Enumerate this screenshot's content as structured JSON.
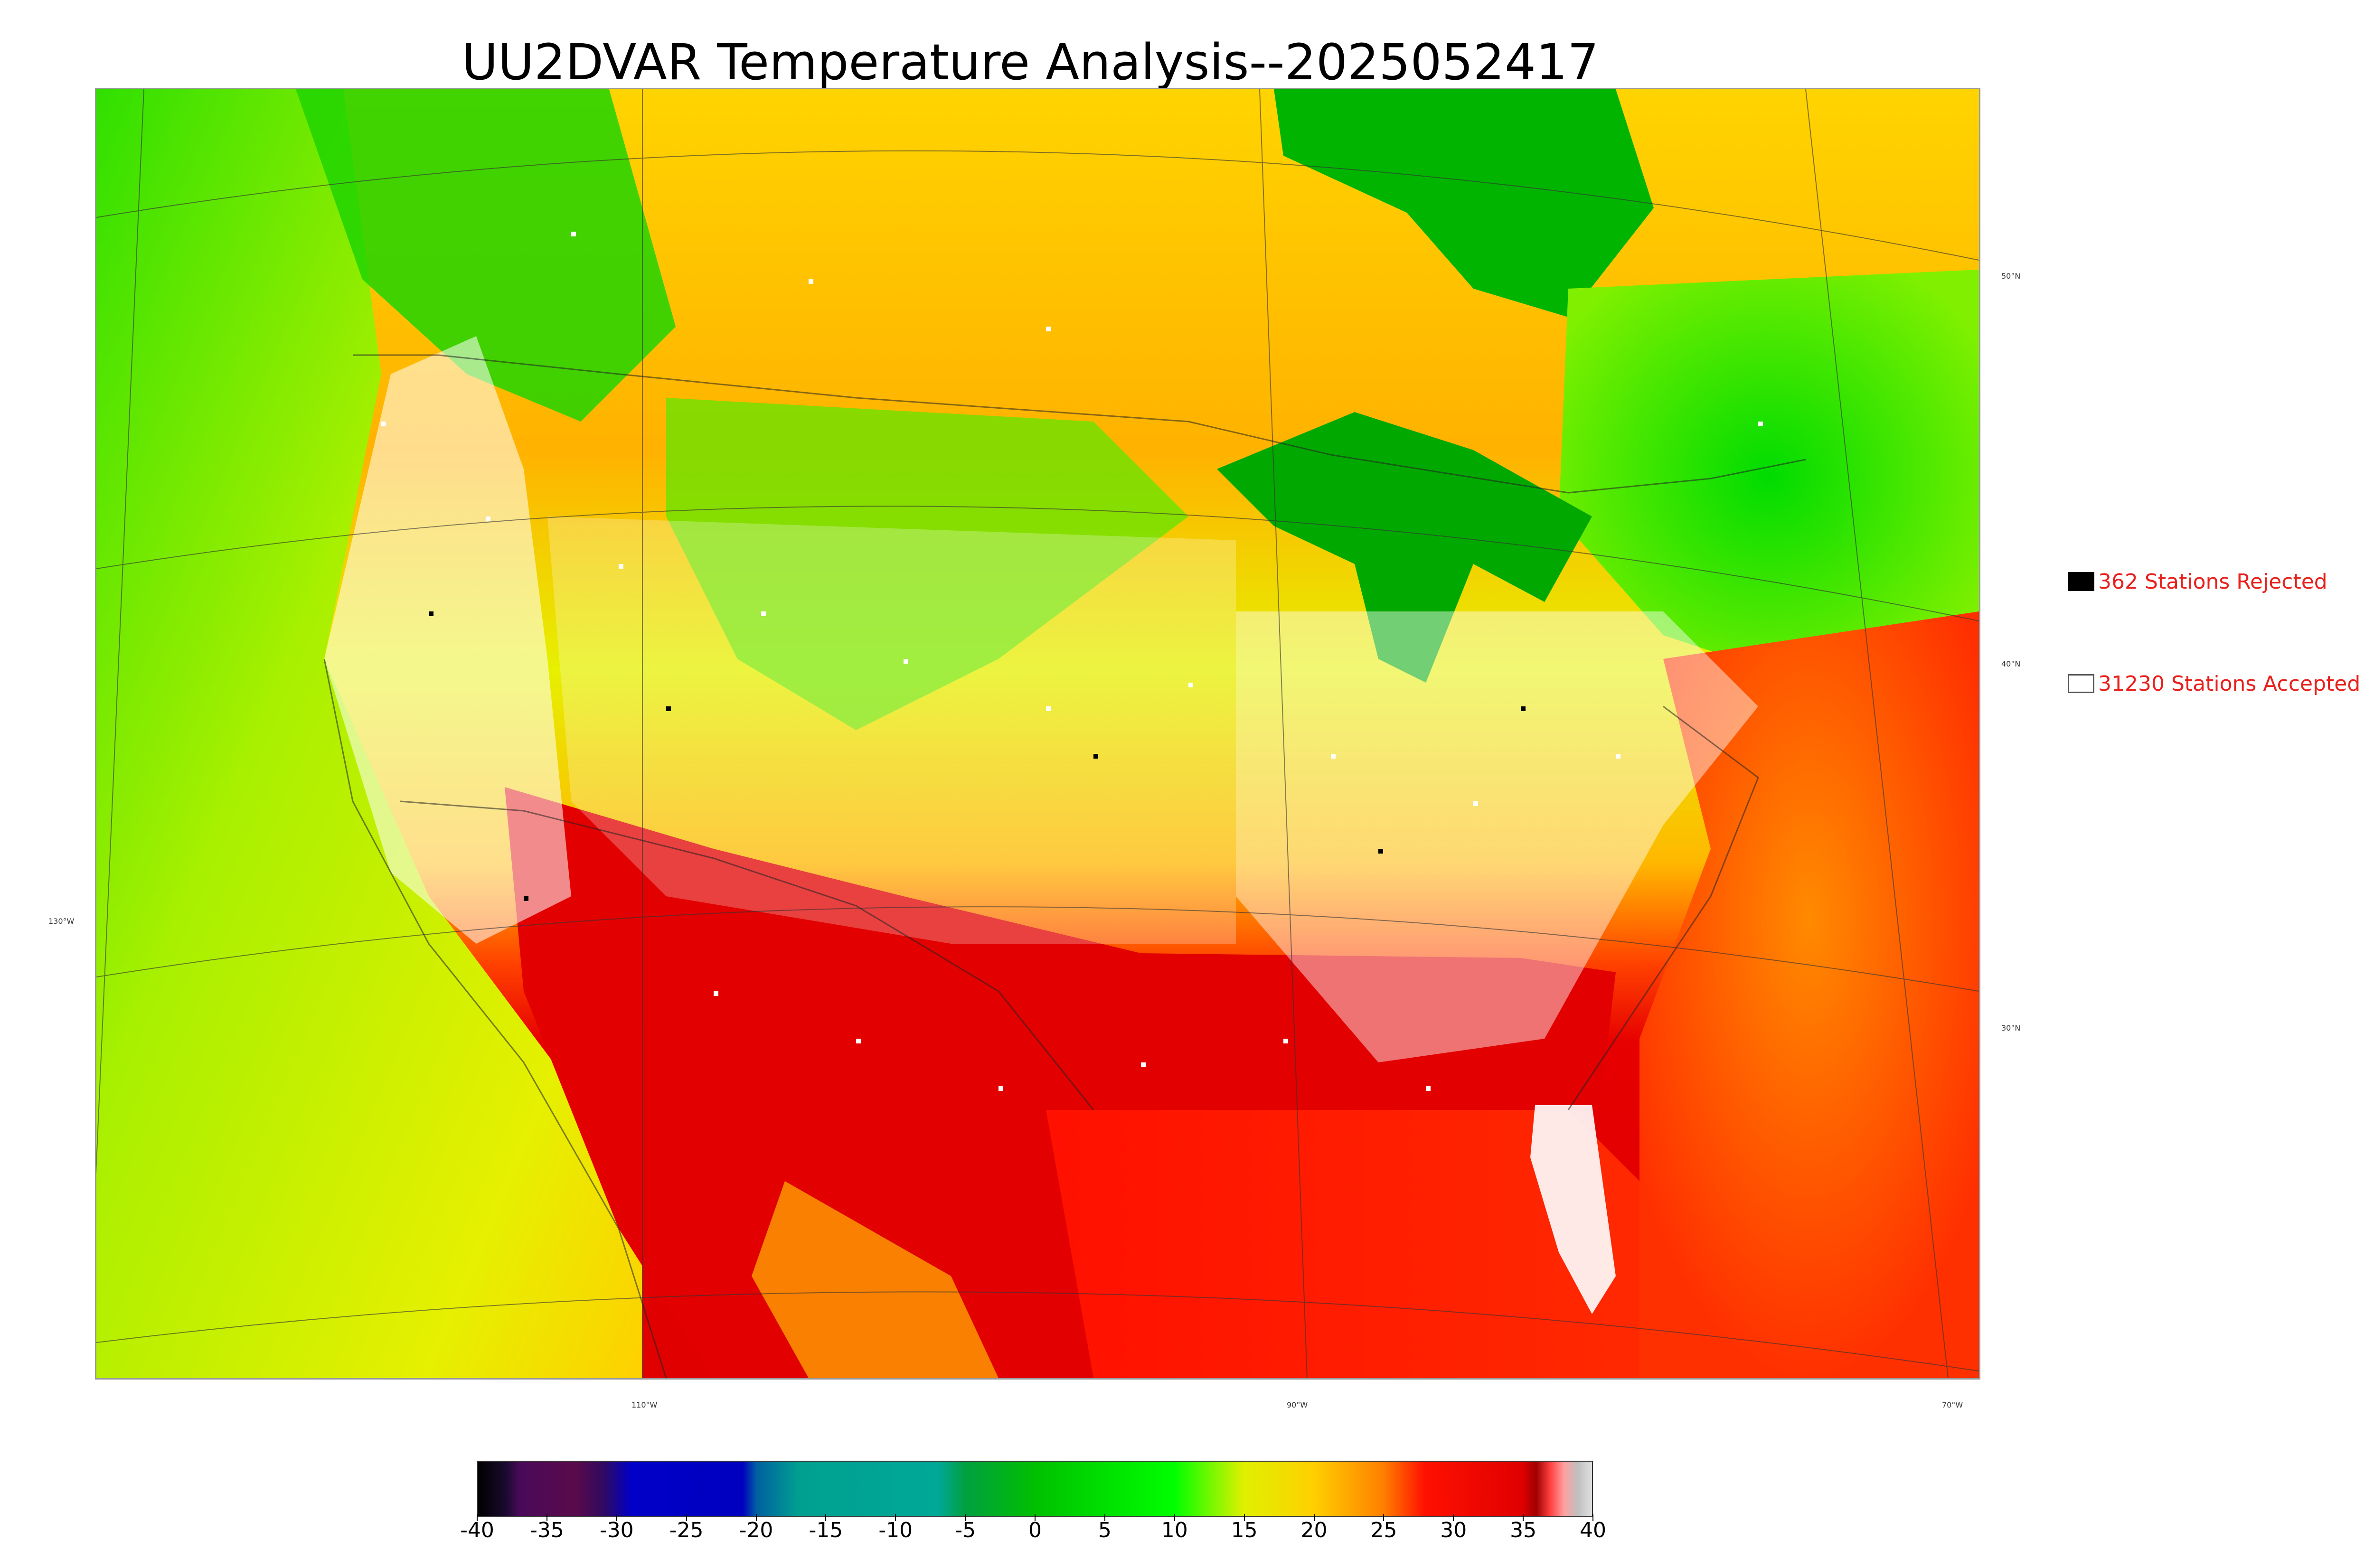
{
  "title": "UU2DVAR Temperature Analysis--2025052417",
  "legend": {
    "rejected": {
      "label": "362 Stations Rejected",
      "swatch_color": "#000000"
    },
    "accepted": {
      "label": "31230 Stations Accepted",
      "swatch_color": "#ffffff"
    }
  },
  "latitude_labels": [
    "50°N",
    "40°N",
    "30°N"
  ],
  "longitude_labels": [
    "130°W",
    "110°W",
    "90°W",
    "70°W"
  ],
  "colorbar": {
    "ticks": [
      "-40",
      "-35",
      "-30",
      "-25",
      "-20",
      "-15",
      "-10",
      "-5",
      "0",
      "5",
      "10",
      "15",
      "20",
      "25",
      "30",
      "35",
      "40"
    ],
    "range": [
      -40,
      40
    ],
    "stops": [
      {
        "value": -40,
        "color": "#000000"
      },
      {
        "value": -38,
        "color": "#1a0a2e"
      },
      {
        "value": -37,
        "color": "#4a0a5a"
      },
      {
        "value": -33,
        "color": "#5a0a4a"
      },
      {
        "value": -31,
        "color": "#300a60"
      },
      {
        "value": -29,
        "color": "#0000c8"
      },
      {
        "value": -21,
        "color": "#0000c0"
      },
      {
        "value": -20,
        "color": "#0060a0"
      },
      {
        "value": -17,
        "color": "#00a090"
      },
      {
        "value": -7,
        "color": "#00a898"
      },
      {
        "value": -5,
        "color": "#00a040"
      },
      {
        "value": 0,
        "color": "#00c000"
      },
      {
        "value": 10,
        "color": "#00ff00"
      },
      {
        "value": 15,
        "color": "#e0f000"
      },
      {
        "value": 20,
        "color": "#ffd000"
      },
      {
        "value": 25,
        "color": "#ff8000"
      },
      {
        "value": 28,
        "color": "#ff1000"
      },
      {
        "value": 35,
        "color": "#e00000"
      },
      {
        "value": 36,
        "color": "#a00000"
      },
      {
        "value": 37,
        "color": "#ff4040"
      },
      {
        "value": 38,
        "color": "#ffa0a0"
      },
      {
        "value": 39,
        "color": "#c0c0c0"
      },
      {
        "value": 40,
        "color": "#e0e0e0"
      }
    ]
  },
  "map_colors": {
    "cold": "#00d000",
    "mild": "#d8f000",
    "warm": "#ffb000",
    "hot": "#e00000",
    "ocean_west": "#c8ee00",
    "ocean_gulf": "#ff2000",
    "lakes": "#00b000"
  }
}
